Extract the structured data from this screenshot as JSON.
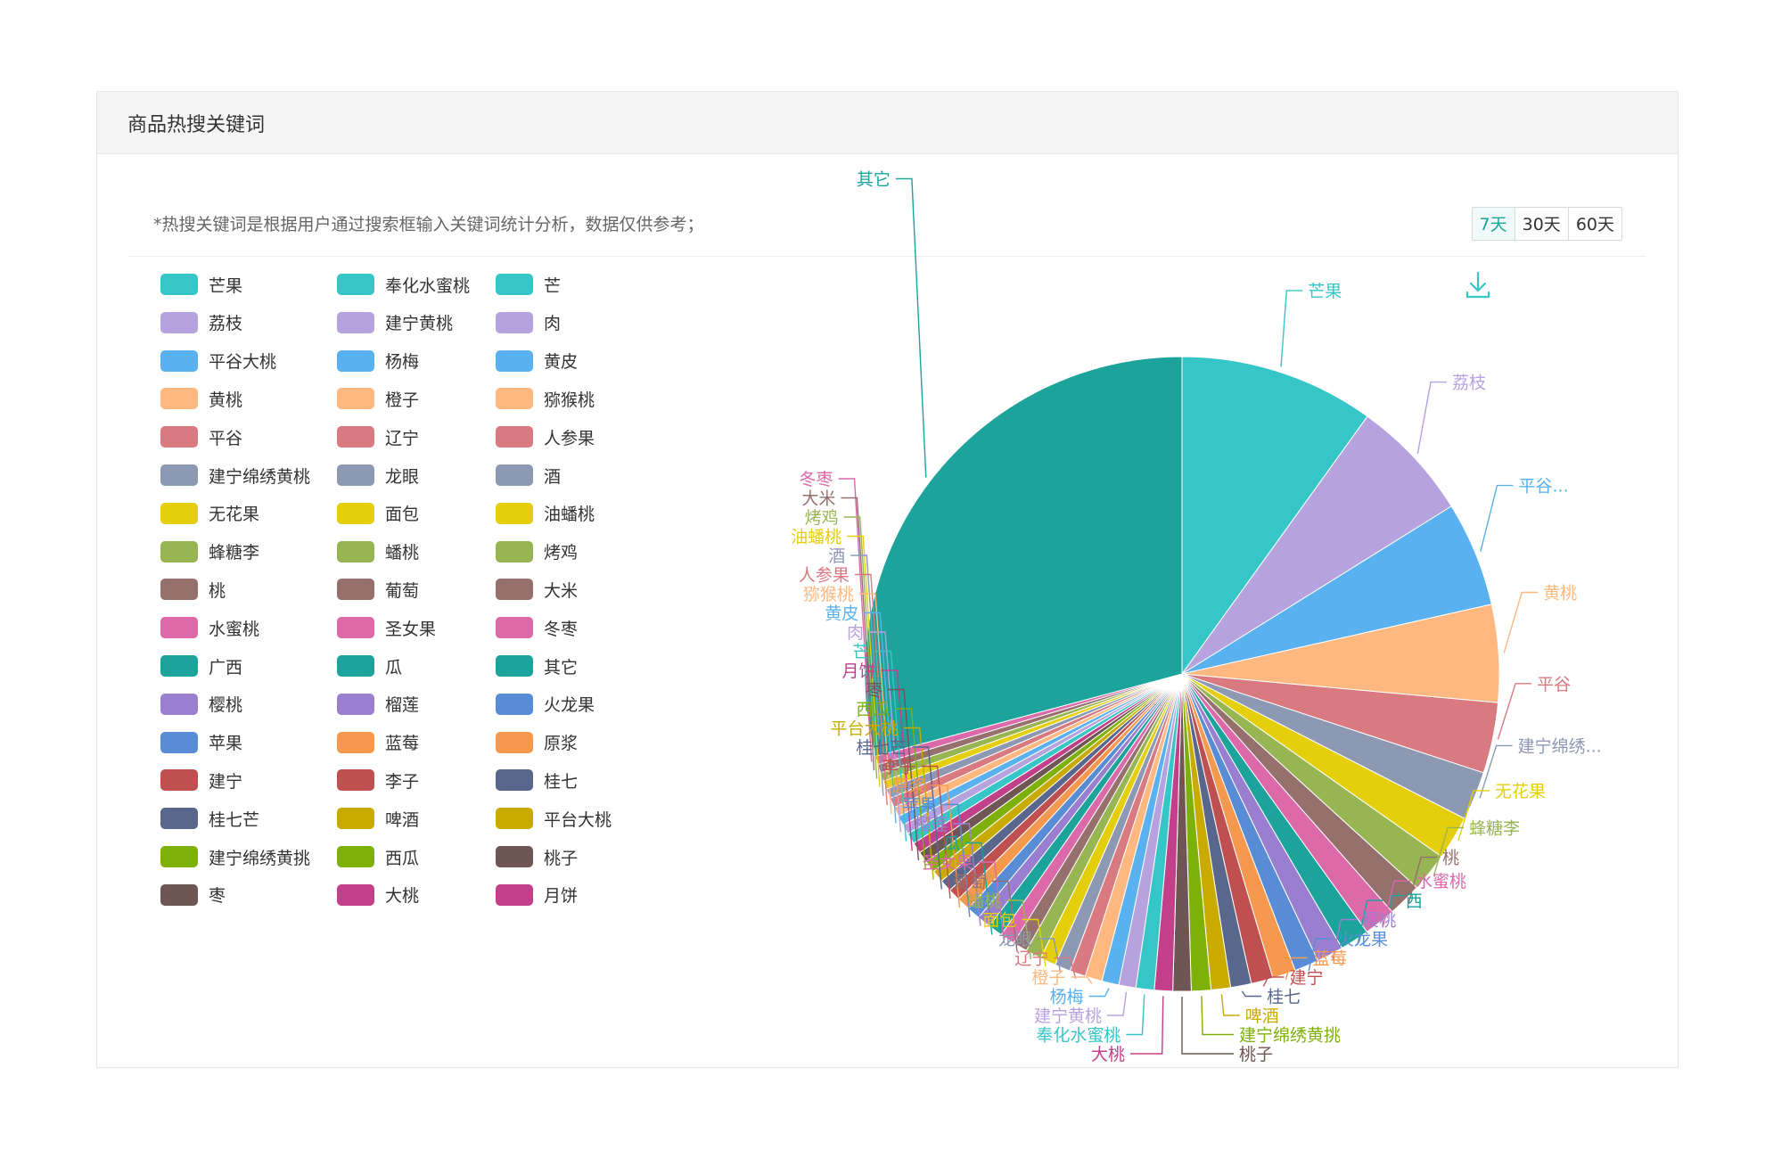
{
  "panel": {
    "title": "商品热搜关键词",
    "notice": "*热搜关键词是根据用户通过搜索框输入关键词统计分析，数据仅供参考；",
    "ranges": [
      {
        "label": "7天",
        "active": true
      },
      {
        "label": "30天",
        "active": false
      },
      {
        "label": "60天",
        "active": false
      }
    ]
  },
  "icons": {
    "download": "download-icon"
  },
  "chart_data": {
    "type": "pie",
    "title": "",
    "legend_position": "left",
    "palette": [
      "#37c6c8",
      "#b6a2de",
      "#5ab1ef",
      "#ffb980",
      "#d87a80",
      "#8d98b3",
      "#e5cf0d",
      "#97b552",
      "#95706d",
      "#dc69aa",
      "#1ca39b",
      "#9a7fd1",
      "#588dd5",
      "#f5994e",
      "#c05050",
      "#59678c",
      "#c9ab00",
      "#7eb00a",
      "#6f5553",
      "#c14089"
    ],
    "slices": [
      {
        "name": "芒果",
        "value": 160,
        "label": "芒果"
      },
      {
        "name": "荔枝",
        "value": 100,
        "label": "荔枝"
      },
      {
        "name": "平谷大桃",
        "value": 86,
        "label": "平谷..."
      },
      {
        "name": "黄桃",
        "value": 80,
        "label": "黄桃"
      },
      {
        "name": "平谷",
        "value": 58,
        "label": "平谷"
      },
      {
        "name": "建宁绵绣黄桃",
        "value": 40,
        "label": "建宁绵绣..."
      },
      {
        "name": "无花果",
        "value": 36,
        "label": "无花果"
      },
      {
        "name": "蜂糖李",
        "value": 32,
        "label": "蜂糖李"
      },
      {
        "name": "桃",
        "value": 28,
        "label": "桃"
      },
      {
        "name": "水蜜桃",
        "value": 26,
        "label": "水蜜桃"
      },
      {
        "name": "广西",
        "value": 24,
        "label": "广西"
      },
      {
        "name": "樱桃",
        "value": 22,
        "label": "樱桃"
      },
      {
        "name": "火龙果",
        "value": 20,
        "label": "火龙果"
      },
      {
        "name": "蓝莓",
        "value": 19,
        "label": "蓝莓"
      },
      {
        "name": "建宁",
        "value": 18,
        "label": "建宁"
      },
      {
        "name": "桂七",
        "value": 17,
        "label": "桂七"
      },
      {
        "name": "啤酒",
        "value": 16,
        "label": "啤酒"
      },
      {
        "name": "建宁绵绣黄挑",
        "value": 16,
        "label": "建宁绵绣黄挑"
      },
      {
        "name": "桃子",
        "value": 15,
        "label": "桃子"
      },
      {
        "name": "大桃",
        "value": 15,
        "label": "大桃"
      },
      {
        "name": "奉化水蜜桃",
        "value": 15,
        "label": "奉化水蜜桃"
      },
      {
        "name": "建宁黄桃",
        "value": 14,
        "label": "建宁黄桃"
      },
      {
        "name": "杨梅",
        "value": 14,
        "label": "杨梅"
      },
      {
        "name": "橙子",
        "value": 14,
        "label": "橙子"
      },
      {
        "name": "辽宁",
        "value": 13,
        "label": "辽宁"
      },
      {
        "name": "龙眼",
        "value": 13,
        "label": "龙眼"
      },
      {
        "name": "面包",
        "value": 13,
        "label": "面包"
      },
      {
        "name": "蟠桃",
        "value": 13,
        "label": "蟠桃"
      },
      {
        "name": "葡萄",
        "value": 12,
        "label": "葡萄"
      },
      {
        "name": "圣女果",
        "value": 12,
        "label": "圣女果"
      },
      {
        "name": "瓜",
        "value": 12,
        "label": "瓜"
      },
      {
        "name": "榴莲",
        "value": 11,
        "label": "榴莲"
      },
      {
        "name": "苹果",
        "value": 11,
        "label": "苹果"
      },
      {
        "name": "原浆",
        "value": 11,
        "label": "原浆"
      },
      {
        "name": "李子",
        "value": 10,
        "label": "李子"
      },
      {
        "name": "桂七芒",
        "value": 10,
        "label": "桂七芒"
      },
      {
        "name": "平台大桃",
        "value": 10,
        "label": "平台大桃"
      },
      {
        "name": "西瓜",
        "value": 10,
        "label": "西瓜"
      },
      {
        "name": "枣",
        "value": 9,
        "label": "枣"
      },
      {
        "name": "月饼",
        "value": 9,
        "label": "月饼"
      },
      {
        "name": "芒",
        "value": 9,
        "label": "芒"
      },
      {
        "name": "肉",
        "value": 8,
        "label": "肉"
      },
      {
        "name": "黄皮",
        "value": 8,
        "label": "黄皮"
      },
      {
        "name": "猕猴桃",
        "value": 8,
        "label": "猕猴桃"
      },
      {
        "name": "人参果",
        "value": 8,
        "label": "人参果"
      },
      {
        "name": "酒",
        "value": 8,
        "label": "酒"
      },
      {
        "name": "油蟠桃",
        "value": 7,
        "label": "油蟠桃"
      },
      {
        "name": "烤鸡",
        "value": 7,
        "label": "烤鸡"
      },
      {
        "name": "大米",
        "value": 7,
        "label": "大米"
      },
      {
        "name": "冬枣",
        "value": 7,
        "label": "冬枣"
      },
      {
        "name": "其它",
        "value": 470,
        "label": "其它"
      }
    ],
    "legend_order": [
      "芒果",
      "奉化水蜜桃",
      "芒",
      "荔枝",
      "建宁黄桃",
      "肉",
      "平谷大桃",
      "杨梅",
      "黄皮",
      "黄桃",
      "橙子",
      "猕猴桃",
      "平谷",
      "辽宁",
      "人参果",
      "建宁绵绣黄桃",
      "龙眼",
      "酒",
      "无花果",
      "面包",
      "油蟠桃",
      "蜂糖李",
      "蟠桃",
      "烤鸡",
      "桃",
      "葡萄",
      "大米",
      "水蜜桃",
      "圣女果",
      "冬枣",
      "广西",
      "瓜",
      "其它",
      "樱桃",
      "榴莲",
      "火龙果",
      "苹果",
      "蓝莓",
      "原浆",
      "建宁",
      "李子",
      "桂七",
      "桂七芒",
      "啤酒",
      "平台大桃",
      "建宁绵绣黄挑",
      "西瓜",
      "桃子",
      "枣",
      "大桃",
      "月饼"
    ]
  }
}
